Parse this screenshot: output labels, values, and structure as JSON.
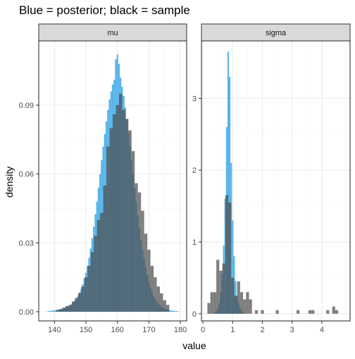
{
  "title": "Blue = posterior; black = sample",
  "colors": {
    "posterior": "#56B4E9",
    "sample": "#4D4D4D",
    "strip_bg": "#D9D9D9",
    "grid": "#EBEBEB",
    "grid_minor": "#F5F5F5",
    "frame": "#333333",
    "axis_text": "#4D4D4D"
  },
  "chart_data": [
    {
      "type": "histogram",
      "panel": "mu",
      "xlabel": "value",
      "ylabel": "density",
      "xlim": [
        135,
        182
      ],
      "ylim": [
        -0.004,
        0.118
      ],
      "xticks": [
        140,
        150,
        160,
        170,
        180
      ],
      "yticks": [
        0.0,
        0.03,
        0.06,
        0.09
      ],
      "ytick_labels": [
        "0.00",
        "0.03",
        "0.06",
        "0.09"
      ],
      "grid": true,
      "series": [
        {
          "name": "posterior",
          "bin_width": 0.5,
          "bins": [
            [
              138,
              0.0003
            ],
            [
              138.5,
              0.0003
            ],
            [
              139,
              0.0004
            ],
            [
              139.5,
              0.0005
            ],
            [
              140,
              0.0006
            ],
            [
              140.5,
              0.0007
            ],
            [
              141,
              0.0008
            ],
            [
              141.5,
              0.001
            ],
            [
              142,
              0.0011
            ],
            [
              142.5,
              0.0013
            ],
            [
              143,
              0.0015
            ],
            [
              143.5,
              0.0017
            ],
            [
              144,
              0.002
            ],
            [
              144.5,
              0.0023
            ],
            [
              145,
              0.0028
            ],
            [
              145.5,
              0.0033
            ],
            [
              146,
              0.004
            ],
            [
              146.5,
              0.0048
            ],
            [
              147,
              0.0058
            ],
            [
              147.5,
              0.007
            ],
            [
              148,
              0.0085
            ],
            [
              148.5,
              0.01
            ],
            [
              149,
              0.012
            ],
            [
              149.5,
              0.0145
            ],
            [
              150,
              0.017
            ],
            [
              150.5,
              0.02
            ],
            [
              151,
              0.0235
            ],
            [
              151.5,
              0.0275
            ],
            [
              152,
              0.032
            ],
            [
              152.5,
              0.037
            ],
            [
              153,
              0.0425
            ],
            [
              153.5,
              0.048
            ],
            [
              154,
              0.054
            ],
            [
              154.5,
              0.06
            ],
            [
              155,
              0.066
            ],
            [
              155.5,
              0.072
            ],
            [
              156,
              0.0775
            ],
            [
              156.5,
              0.083
            ],
            [
              157,
              0.088
            ],
            [
              157.5,
              0.0925
            ],
            [
              158,
              0.096
            ],
            [
              158.5,
              0.099
            ],
            [
              159,
              0.101
            ],
            [
              159.5,
              0.11
            ],
            [
              160,
              0.112
            ],
            [
              160.5,
              0.108
            ],
            [
              161,
              0.102
            ],
            [
              161.5,
              0.098
            ],
            [
              162,
              0.094
            ],
            [
              162.5,
              0.089
            ],
            [
              163,
              0.084
            ],
            [
              163.5,
              0.078
            ],
            [
              164,
              0.072
            ],
            [
              164.5,
              0.066
            ],
            [
              165,
              0.06
            ],
            [
              165.5,
              0.054
            ],
            [
              166,
              0.048
            ],
            [
              166.5,
              0.042
            ],
            [
              167,
              0.0365
            ],
            [
              167.5,
              0.0315
            ],
            [
              168,
              0.027
            ],
            [
              168.5,
              0.023
            ],
            [
              169,
              0.0195
            ],
            [
              169.5,
              0.016
            ],
            [
              170,
              0.013
            ],
            [
              170.5,
              0.0105
            ],
            [
              171,
              0.0085
            ],
            [
              171.5,
              0.0068
            ],
            [
              172,
              0.0055
            ],
            [
              172.5,
              0.0044
            ],
            [
              173,
              0.0035
            ],
            [
              173.5,
              0.0028
            ],
            [
              174,
              0.0022
            ],
            [
              174.5,
              0.0018
            ],
            [
              175,
              0.0014
            ],
            [
              175.5,
              0.0011
            ],
            [
              176,
              0.0009
            ],
            [
              176.5,
              0.0007
            ],
            [
              177,
              0.0006
            ],
            [
              177.5,
              0.0005
            ],
            [
              178,
              0.0004
            ],
            [
              178.5,
              0.0003
            ],
            [
              179,
              0.0003
            ]
          ]
        },
        {
          "name": "sample",
          "bin_width": 1,
          "bins": [
            [
              141,
              0.0008
            ],
            [
              142,
              0.0012
            ],
            [
              143,
              0.0018
            ],
            [
              144,
              0.0025
            ],
            [
              145,
              0.003
            ],
            [
              146,
              0.0045
            ],
            [
              147,
              0.006
            ],
            [
              148,
              0.008
            ],
            [
              149,
              0.011
            ],
            [
              150,
              0.015
            ],
            [
              151,
              0.02
            ],
            [
              152,
              0.026
            ],
            [
              153,
              0.033
            ],
            [
              154,
              0.04
            ],
            [
              155,
              0.043
            ],
            [
              156,
              0.055
            ],
            [
              157,
              0.072
            ],
            [
              158,
              0.08
            ],
            [
              159,
              0.086
            ],
            [
              160,
              0.09
            ],
            [
              161,
              0.095
            ],
            [
              162,
              0.088
            ],
            [
              163,
              0.084
            ],
            [
              164,
              0.079
            ],
            [
              165,
              0.07
            ],
            [
              166,
              0.056
            ],
            [
              167,
              0.052
            ],
            [
              168,
              0.044
            ],
            [
              169,
              0.034
            ],
            [
              170,
              0.027
            ],
            [
              171,
              0.02
            ],
            [
              172,
              0.015
            ],
            [
              173,
              0.011
            ],
            [
              174,
              0.008
            ],
            [
              175,
              0.005
            ],
            [
              176,
              0.003
            ]
          ]
        }
      ]
    },
    {
      "type": "histogram",
      "panel": "sigma",
      "xlabel": "value",
      "xlim": [
        -0.05,
        4.95
      ],
      "ylim": [
        -0.1,
        3.8
      ],
      "xticks": [
        0,
        1,
        2,
        3,
        4
      ],
      "yticks": [
        0,
        1,
        2,
        3
      ],
      "grid": true,
      "series": [
        {
          "name": "posterior",
          "bin_width": 0.05,
          "bins": [
            [
              0.4,
              0.02
            ],
            [
              0.45,
              0.04
            ],
            [
              0.5,
              0.08
            ],
            [
              0.55,
              0.15
            ],
            [
              0.6,
              0.3
            ],
            [
              0.65,
              0.55
            ],
            [
              0.7,
              0.95
            ],
            [
              0.75,
              1.6
            ],
            [
              0.8,
              2.6
            ],
            [
              0.85,
              3.65
            ],
            [
              0.9,
              3.3
            ],
            [
              0.95,
              2.1
            ],
            [
              1.0,
              1.3
            ],
            [
              1.05,
              0.8
            ],
            [
              1.1,
              0.45
            ],
            [
              1.15,
              0.25
            ],
            [
              1.2,
              0.15
            ],
            [
              1.25,
              0.08
            ],
            [
              1.3,
              0.04
            ],
            [
              1.35,
              0.02
            ]
          ]
        },
        {
          "name": "sample",
          "bin_width": 0.1,
          "bins": [
            [
              0.2,
              0.15
            ],
            [
              0.3,
              0.3
            ],
            [
              0.4,
              0.3
            ],
            [
              0.5,
              0.75
            ],
            [
              0.6,
              0.6
            ],
            [
              0.7,
              0.7
            ],
            [
              0.8,
              1.65
            ],
            [
              0.9,
              1.55
            ],
            [
              1.0,
              0.5
            ],
            [
              1.1,
              0.25
            ],
            [
              1.2,
              0.45
            ],
            [
              1.3,
              0.3
            ],
            [
              1.4,
              0.2
            ],
            [
              1.5,
              0.3
            ],
            [
              1.6,
              0.2
            ],
            [
              1.8,
              0.05
            ],
            [
              2.0,
              0.05
            ],
            [
              2.5,
              0.05
            ],
            [
              3.2,
              0.05
            ],
            [
              3.6,
              0.05
            ],
            [
              3.7,
              0.05
            ],
            [
              4.2,
              0.05
            ],
            [
              4.4,
              0.1
            ],
            [
              4.5,
              0.05
            ]
          ]
        }
      ]
    }
  ]
}
